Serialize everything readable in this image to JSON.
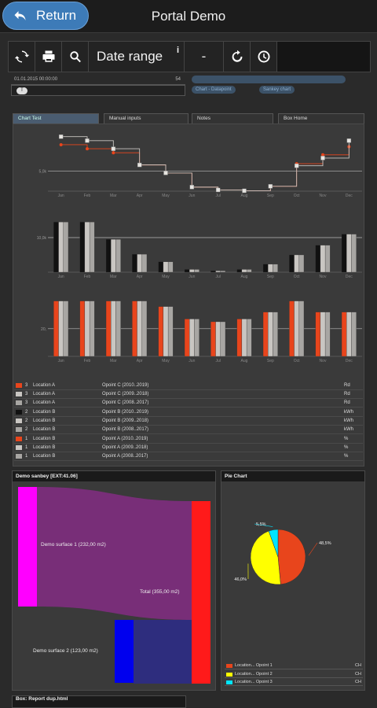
{
  "header": {
    "return_label": "Return",
    "title": "Portal Demo"
  },
  "toolbar": {
    "date_range_label": "Date range",
    "info_glyph": "i",
    "dash_label": "-"
  },
  "strip": {
    "left_text": "01.01.2015 00:00:00",
    "right_text": "54",
    "filter_pill": "T"
  },
  "tags": [
    "Chart - Datapoint",
    "Sankey chart"
  ],
  "tabs": [
    "Chart Test",
    "Manual inputs",
    "Notes",
    "Box Home"
  ],
  "colors": {
    "orange": "#e8451c",
    "silver": "#c9c6c2",
    "gray": "#a8a6a3",
    "black": "#111111",
    "purple": "#7b2d7b",
    "magenta": "#ff00ff",
    "red": "#ff1a1a",
    "blue": "#0000ee",
    "navy": "#2e2d7e",
    "yellow": "#ffff00",
    "cyan": "#00e5ff"
  },
  "chart_data": [
    {
      "type": "line",
      "categories": [
        "Jan",
        "Feb",
        "Mar",
        "Apr",
        "May",
        "Jun",
        "Jul",
        "Aug",
        "Sep",
        "Oct",
        "Nov",
        "Dec"
      ],
      "series": [
        {
          "values": [
            11.5,
            10.5,
            9.5,
            6.5,
            4.5,
            1.0,
            0.3,
            0.1,
            1.2,
            6.8,
            9.0,
            11.0
          ]
        },
        {
          "values": [
            13.5,
            12.5,
            10.5,
            6.5,
            4.5,
            1.0,
            0.3,
            0.1,
            1.2,
            6.3,
            8.2,
            12.5
          ]
        }
      ],
      "ytick_label": "5,0k",
      "ylim": [
        0,
        15
      ]
    },
    {
      "type": "bar",
      "categories": [
        "Jan",
        "Feb",
        "Mar",
        "Apr",
        "May",
        "Jun",
        "Jul",
        "Aug",
        "Sep",
        "Oct",
        "Nov",
        "Dec"
      ],
      "series": [
        {
          "values": [
            14.5,
            14.5,
            9.5,
            5.2,
            3.0,
            0.8,
            0.4,
            0.8,
            2.3,
            5.0,
            7.8,
            11.0
          ]
        },
        {
          "values": [
            14.5,
            14.5,
            9.5,
            5.2,
            3.0,
            0.8,
            0.4,
            0.8,
            2.3,
            5.0,
            7.8,
            11.0
          ]
        },
        {
          "values": [
            14.5,
            14.5,
            9.5,
            5.2,
            3.0,
            0.8,
            0.4,
            0.8,
            2.3,
            5.0,
            7.8,
            11.0
          ]
        }
      ],
      "ytick_label": "10,0k",
      "ylim": [
        0,
        20
      ]
    },
    {
      "type": "bar",
      "categories": [
        "Jan",
        "Feb",
        "Mar",
        "Apr",
        "May",
        "Jun",
        "Jul",
        "Aug",
        "Sep",
        "Oct",
        "Nov",
        "Dec"
      ],
      "series": [
        {
          "values": [
            40,
            40,
            40,
            40,
            36,
            27,
            25,
            27,
            32,
            40,
            32,
            32
          ]
        },
        {
          "values": [
            40,
            40,
            40,
            40,
            36,
            27,
            25,
            27,
            32,
            40,
            32,
            32
          ]
        },
        {
          "values": [
            40,
            40,
            40,
            40,
            36,
            27,
            25,
            27,
            32,
            40,
            32,
            32
          ]
        }
      ],
      "ytick_label": "20,",
      "ylim": [
        0,
        50
      ]
    },
    {
      "type": "sankey",
      "title": "Demo sanbey [EXT:41.06]",
      "nodes": [
        "Demo surface 1 (232,00 m2)",
        "Demo surface 2 (123,00 m2)",
        "Total (355,00 m2)"
      ],
      "values": [
        232,
        123,
        355
      ]
    },
    {
      "type": "pie",
      "title": "Pie Chart",
      "slices": [
        {
          "name": "Location... Opoint 1",
          "value": 48.5,
          "label": "48,5%"
        },
        {
          "name": "Location... Opoint 2",
          "value": 46.0,
          "label": "46,0%"
        },
        {
          "name": "Location... Opoint 3",
          "value": 5.5,
          "label": "5,5%"
        }
      ]
    }
  ],
  "legend": [
    {
      "n": "3",
      "loc": "Location A",
      "pt": "Opoint C (2010..2019)",
      "u": "Rd",
      "color": "#e8451c"
    },
    {
      "n": "3",
      "loc": "Location A",
      "pt": "Opoint C (2009..2018)",
      "u": "Rd",
      "color": "#c9c6c2"
    },
    {
      "n": "3",
      "loc": "Location A",
      "pt": "Opoint C (2008..2017)",
      "u": "Rd",
      "color": "#a8a6a3"
    },
    {
      "n": "2",
      "loc": "Location B",
      "pt": "Opoint B (2010..2019)",
      "u": "kWh",
      "color": "#111111"
    },
    {
      "n": "2",
      "loc": "Location B",
      "pt": "Opoint B (2009..2018)",
      "u": "kWh",
      "color": "#c9c6c2"
    },
    {
      "n": "2",
      "loc": "Location B",
      "pt": "Opoint B (2008..2017)",
      "u": "kWh",
      "color": "#a8a6a3"
    },
    {
      "n": "1",
      "loc": "Location B",
      "pt": "Opoint A (2010..2019)",
      "u": "%",
      "color": "#e8451c"
    },
    {
      "n": "1",
      "loc": "Location B",
      "pt": "Opoint A (2009..2018)",
      "u": "%",
      "color": "#c9c6c2"
    },
    {
      "n": "1",
      "loc": "Location B",
      "pt": "Opoint A (2008..2017)",
      "u": "%",
      "color": "#a8a6a3"
    }
  ],
  "pie_legend_unit": "CH",
  "bottom_panel_title": "Box: Report dup.html"
}
